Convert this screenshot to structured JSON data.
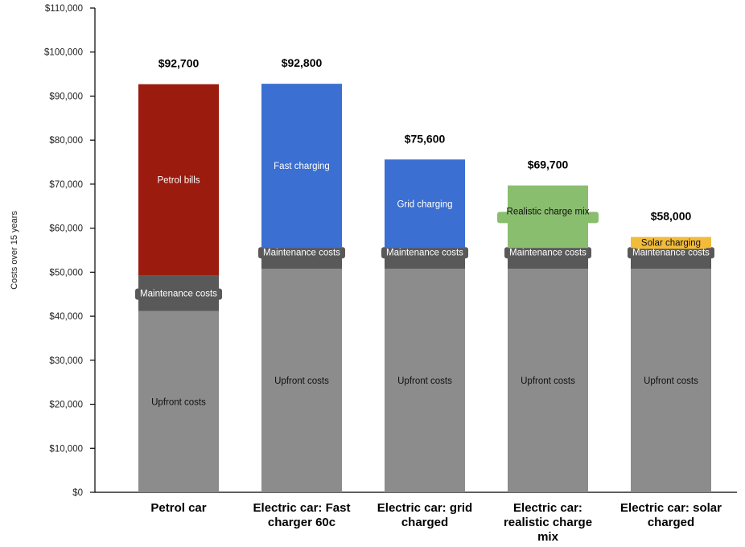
{
  "chart_data": {
    "type": "bar",
    "stacked": true,
    "ylabel": "Costs over 15 years",
    "ylim": [
      0,
      110000
    ],
    "y_tick_step": 10000,
    "y_tick_labels": [
      "$0",
      "$10,000",
      "$20,000",
      "$30,000",
      "$40,000",
      "$50,000",
      "$60,000",
      "$70,000",
      "$80,000",
      "$90,000",
      "$100,000",
      "$110,000"
    ],
    "grid": false,
    "legend": "none",
    "categories": [
      {
        "lines": [
          "Petrol car"
        ]
      },
      {
        "lines": [
          "Electric car: Fast",
          "charger 60c"
        ]
      },
      {
        "lines": [
          "Electric car: grid",
          "charged"
        ]
      },
      {
        "lines": [
          "Electric car:",
          "realistic charge",
          "mix"
        ]
      },
      {
        "lines": [
          "Electric car: solar",
          "charged"
        ]
      }
    ],
    "bars": [
      {
        "total_label": "$92,700",
        "segments": [
          {
            "label": "Upfront costs",
            "value": 41200,
            "color": "#8c8c8c"
          },
          {
            "label": "Maintenance costs",
            "value": 8000,
            "color": "#595959"
          },
          {
            "label": "Petrol bills",
            "value": 43500,
            "color": "#9b1b0f"
          }
        ]
      },
      {
        "total_label": "$92,800",
        "segments": [
          {
            "label": "Upfront costs",
            "value": 50800,
            "color": "#8c8c8c"
          },
          {
            "label": "Maintenance costs",
            "value": 4700,
            "color": "#595959"
          },
          {
            "label": "Fast charging",
            "value": 37300,
            "color": "#3b6fd1"
          }
        ]
      },
      {
        "total_label": "$75,600",
        "segments": [
          {
            "label": "Upfront costs",
            "value": 50800,
            "color": "#8c8c8c"
          },
          {
            "label": "Maintenance costs",
            "value": 4700,
            "color": "#595959"
          },
          {
            "label": "Grid charging",
            "value": 20100,
            "color": "#3b6fd1"
          }
        ]
      },
      {
        "total_label": "$69,700",
        "segments": [
          {
            "label": "Upfront costs",
            "value": 50800,
            "color": "#8c8c8c"
          },
          {
            "label": "Maintenance costs",
            "value": 4700,
            "color": "#595959"
          },
          {
            "label": "Realistic charge mix",
            "value": 14200,
            "color": "#8abe6f"
          }
        ]
      },
      {
        "total_label": "$58,000",
        "segments": [
          {
            "label": "Upfront costs",
            "value": 50800,
            "color": "#8c8c8c"
          },
          {
            "label": "Maintenance costs",
            "value": 4700,
            "color": "#595959"
          },
          {
            "label": "Solar charging",
            "value": 2500,
            "color": "#f2bb3a"
          }
        ]
      }
    ]
  }
}
